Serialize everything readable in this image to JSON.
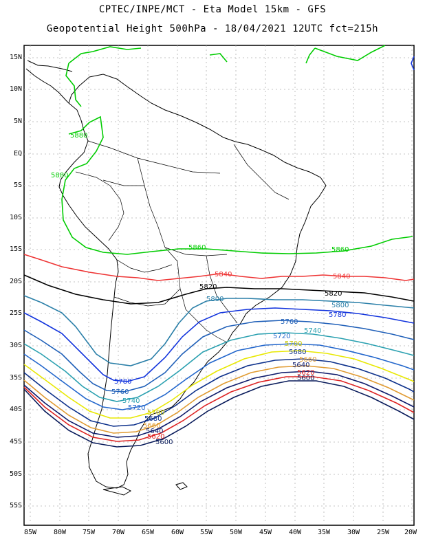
{
  "header": {
    "line1": "CPTEC/INPE/MCT -  Eta Model 15km - GFS",
    "line2": "Geopotential Height 500hPa - 18/04/2021 12UTC fct=215h"
  },
  "axes": {
    "lat_labels": [
      "15N",
      "10N",
      "5N",
      "EQ",
      "5S",
      "10S",
      "15S",
      "20S",
      "25S",
      "30S",
      "35S",
      "40S",
      "45S",
      "50S",
      "55S"
    ],
    "lon_labels": [
      "85W",
      "80W",
      "75W",
      "70W",
      "65W",
      "60W",
      "55W",
      "50W",
      "45W",
      "40W",
      "35W",
      "30W",
      "25W",
      "20W"
    ]
  },
  "contours": [
    {
      "value": "5880",
      "color": "#00cc00"
    },
    {
      "value": "5860",
      "color": "#00cc00"
    },
    {
      "value": "5840",
      "color": "#ee3333"
    },
    {
      "value": "5820",
      "color": "#000000"
    },
    {
      "value": "5800",
      "color": "#2a7fa8"
    },
    {
      "value": "5780",
      "color": "#1133dd"
    },
    {
      "value": "5760",
      "color": "#1f5fb8"
    },
    {
      "value": "5740",
      "color": "#2aa0b0"
    },
    {
      "value": "5720",
      "color": "#2266cc"
    },
    {
      "value": "5700",
      "color": "#e8e800"
    },
    {
      "value": "5680",
      "color": "#0b2f8a"
    },
    {
      "value": "5660",
      "color": "#e09a30"
    },
    {
      "value": "5640",
      "color": "#0d1a6b"
    },
    {
      "value": "5620",
      "color": "#dd2222"
    },
    {
      "value": "5600",
      "color": "#081a5a"
    }
  ]
}
